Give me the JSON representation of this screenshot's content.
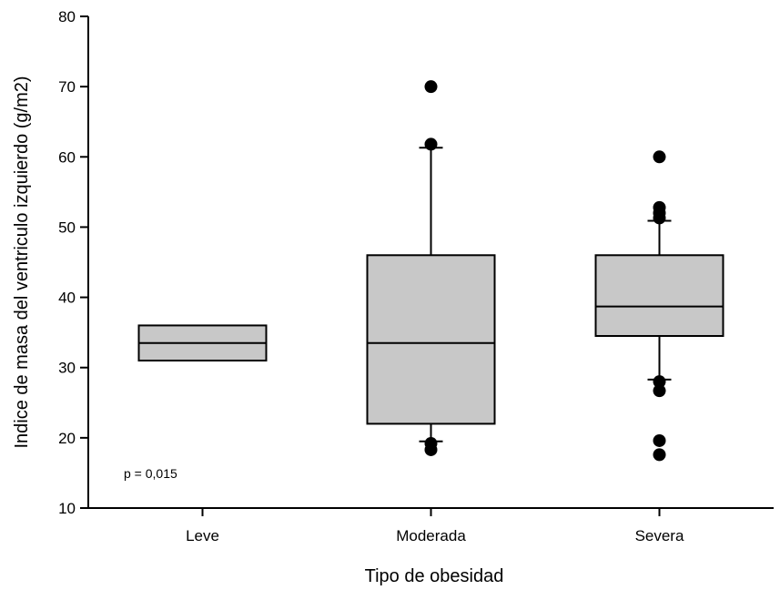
{
  "chart_data": {
    "type": "box",
    "title": "",
    "xlabel": "Tipo de obesidad",
    "ylabel": "Indice de masa del ventriculo izquierdo (g/m2)",
    "ylim": [
      10,
      80
    ],
    "yticks": [
      10,
      20,
      30,
      40,
      50,
      60,
      70,
      80
    ],
    "categories": [
      "Leve",
      "Moderada",
      "Severa"
    ],
    "boxes": [
      {
        "category": "Leve",
        "q1": 31,
        "median": 33.5,
        "q3": 36,
        "whisker_low": null,
        "whisker_high": null,
        "outliers": []
      },
      {
        "category": "Moderada",
        "q1": 22,
        "median": 33.5,
        "q3": 46,
        "whisker_low": 19.5,
        "whisker_high": 61.3,
        "outliers": [
          70,
          61.8,
          19.2,
          18.3
        ]
      },
      {
        "category": "Severa",
        "q1": 34.5,
        "median": 38.7,
        "q3": 46,
        "whisker_low": 28.3,
        "whisker_high": 50.9,
        "outliers": [
          60,
          52.8,
          52,
          51.3,
          28,
          26.7,
          19.6,
          17.6
        ]
      }
    ],
    "box_color": "#c8c8c8",
    "annotation": "p = 0,015"
  }
}
